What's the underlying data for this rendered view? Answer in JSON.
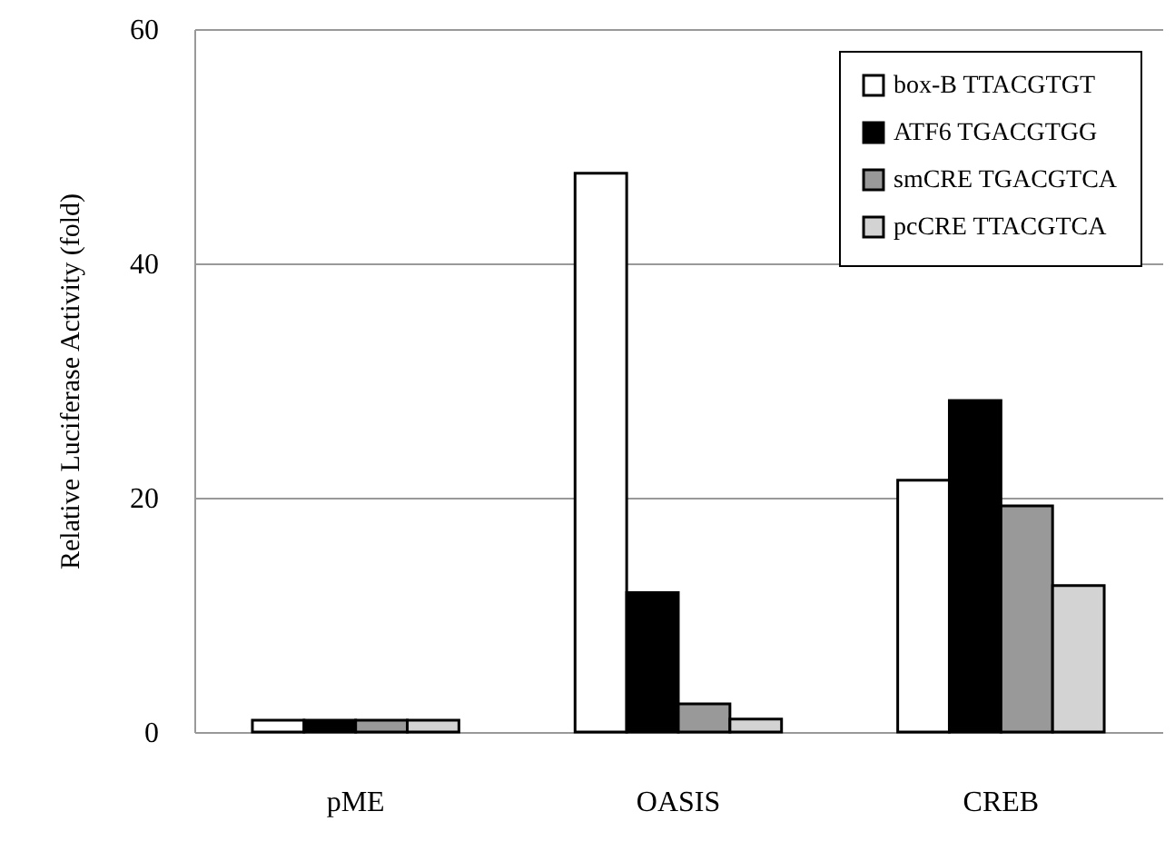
{
  "chart_data": {
    "type": "bar",
    "ylabel": "Relative Luciferase Activity (fold)",
    "categories": [
      "pME",
      "OASIS",
      "CREB"
    ],
    "series": [
      {
        "name": "box-B  TTACGTGT",
        "color": "#ffffff",
        "values": [
          1.0,
          47.7,
          21.5
        ]
      },
      {
        "name": "ATF6   TGACGTGG",
        "color": "#000000",
        "values": [
          1.0,
          11.9,
          28.3
        ]
      },
      {
        "name": "smCRE TGACGTCA",
        "color": "#999999",
        "values": [
          1.0,
          2.4,
          19.3
        ]
      },
      {
        "name": "pcCRE TTACGTCA",
        "color": "#d3d3d3",
        "values": [
          1.0,
          1.1,
          12.5
        ]
      }
    ],
    "ylim": [
      0,
      60
    ],
    "yticks": [
      0,
      20,
      40,
      60
    ],
    "grid": "y",
    "legend": "top right"
  }
}
